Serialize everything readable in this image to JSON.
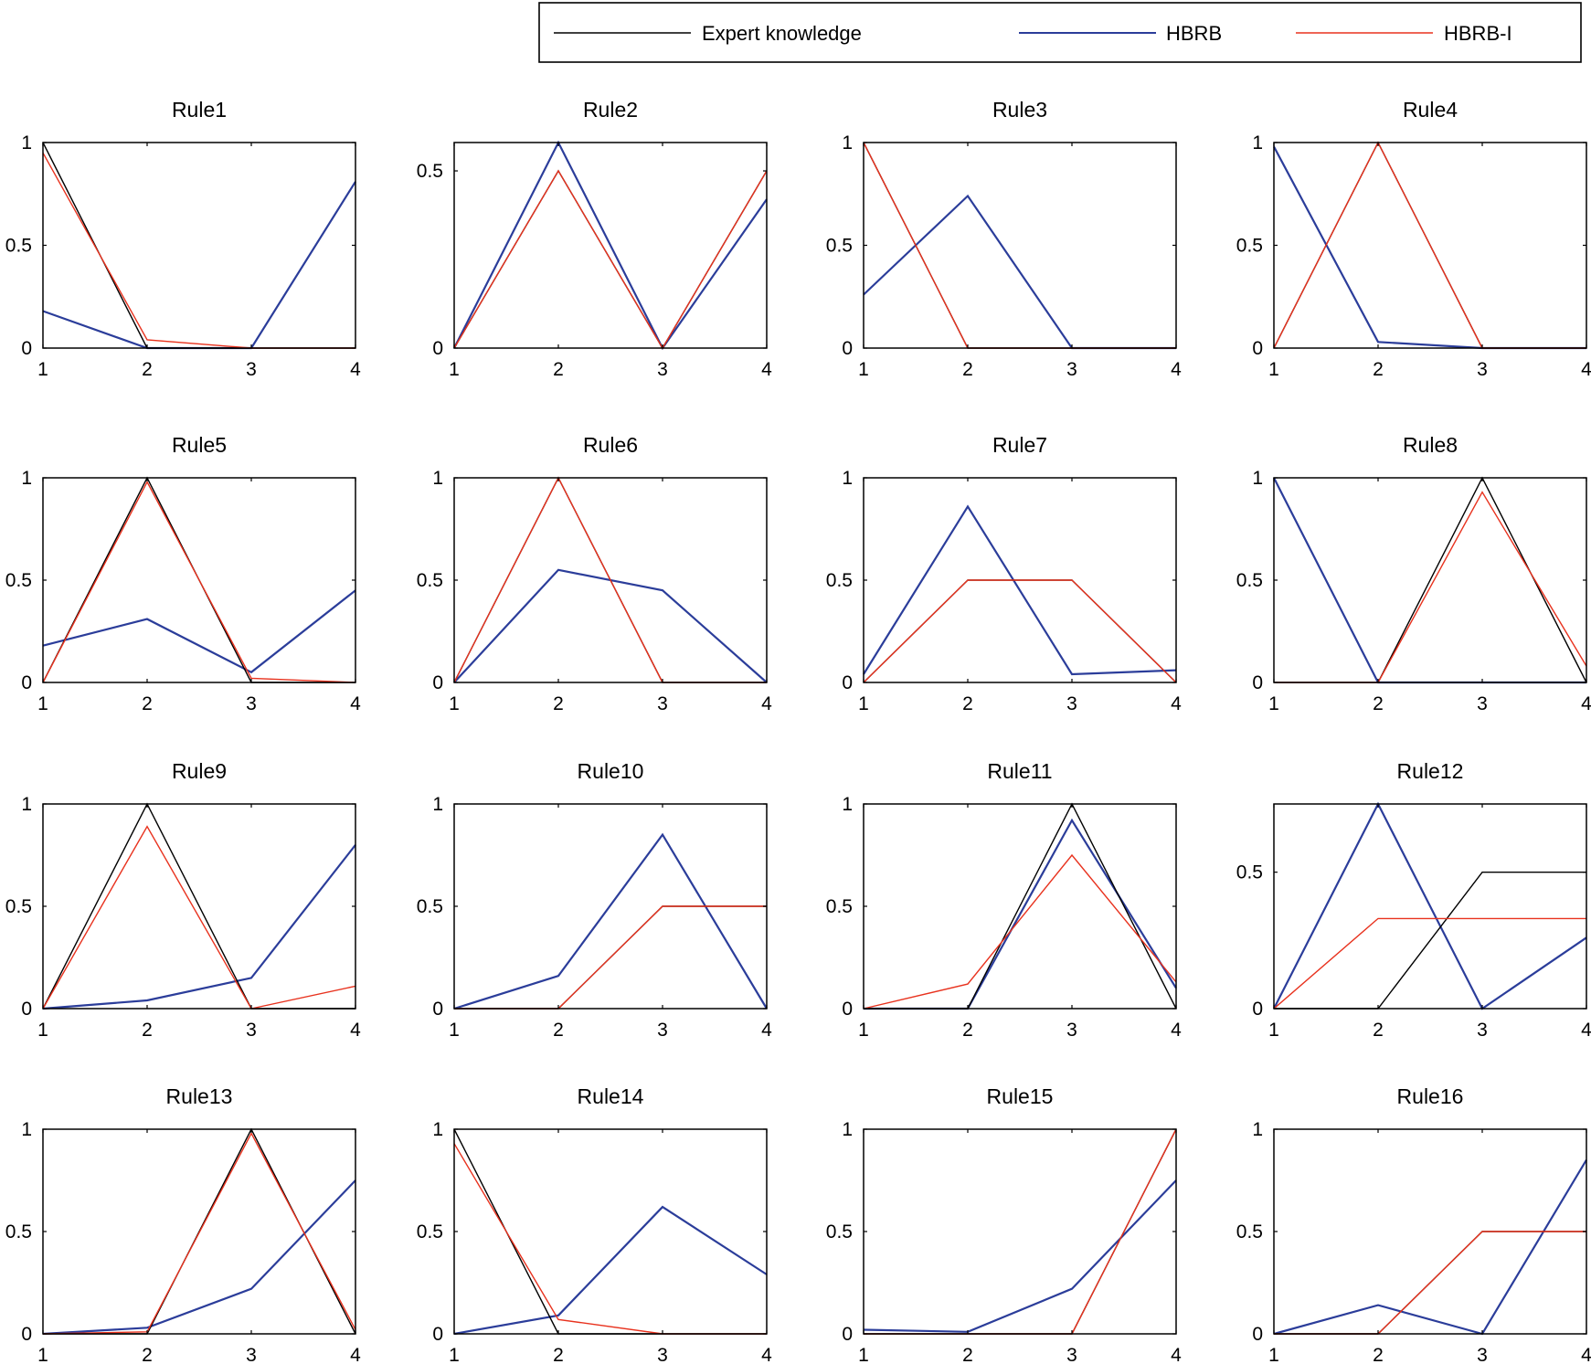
{
  "legend": {
    "entries": [
      {
        "label": "Expert knowledge",
        "color": "#000000"
      },
      {
        "label": "HBRB",
        "color": "#2b3d9a"
      },
      {
        "label": "HBRB-I",
        "color": "#e8321e"
      }
    ]
  },
  "chart_data": [
    {
      "type": "line",
      "title": "Rule1",
      "x": [
        1,
        2,
        3,
        4
      ],
      "xticks": [
        "1",
        "2",
        "3",
        "4"
      ],
      "ylim": [
        0,
        1
      ],
      "yticks": [
        0,
        0.5,
        1
      ],
      "yticklabels": [
        "0",
        "0.5",
        "1"
      ],
      "series": [
        {
          "name": "Expert knowledge",
          "values": [
            1,
            0,
            0,
            0
          ]
        },
        {
          "name": "HBRB",
          "values": [
            0.18,
            0,
            0,
            0.81
          ]
        },
        {
          "name": "HBRB-I",
          "values": [
            0.95,
            0.04,
            0,
            0
          ]
        }
      ]
    },
    {
      "type": "line",
      "title": "Rule2",
      "x": [
        1,
        2,
        3,
        4
      ],
      "xticks": [
        "1",
        "2",
        "3",
        "4"
      ],
      "ylim": [
        0,
        0.58
      ],
      "yticks": [
        0,
        0.5
      ],
      "yticklabels": [
        "0",
        "0.5"
      ],
      "series": [
        {
          "name": "Expert knowledge",
          "values": [
            0,
            0.5,
            0,
            0.5
          ]
        },
        {
          "name": "HBRB",
          "values": [
            0,
            0.58,
            0,
            0.42
          ]
        },
        {
          "name": "HBRB-I",
          "values": [
            0,
            0.5,
            0,
            0.5
          ]
        }
      ]
    },
    {
      "type": "line",
      "title": "Rule3",
      "x": [
        1,
        2,
        3,
        4
      ],
      "xticks": [
        "1",
        "2",
        "3",
        "4"
      ],
      "ylim": [
        0,
        1
      ],
      "yticks": [
        0,
        0.5,
        1
      ],
      "yticklabels": [
        "0",
        "0.5",
        "1"
      ],
      "series": [
        {
          "name": "Expert knowledge",
          "values": [
            1,
            0,
            0,
            0
          ]
        },
        {
          "name": "HBRB",
          "values": [
            0.26,
            0.74,
            0,
            0
          ]
        },
        {
          "name": "HBRB-I",
          "values": [
            1,
            0,
            0,
            0
          ]
        }
      ]
    },
    {
      "type": "line",
      "title": "Rule4",
      "x": [
        1,
        2,
        3,
        4
      ],
      "xticks": [
        "1",
        "2",
        "3",
        "4"
      ],
      "ylim": [
        0,
        1
      ],
      "yticks": [
        0,
        0.5,
        1
      ],
      "yticklabels": [
        "0",
        "0.5",
        "1"
      ],
      "series": [
        {
          "name": "Expert knowledge",
          "values": [
            0,
            1,
            0,
            0
          ]
        },
        {
          "name": "HBRB",
          "values": [
            0.98,
            0.03,
            0,
            0
          ]
        },
        {
          "name": "HBRB-I",
          "values": [
            0,
            1,
            0,
            0
          ]
        }
      ]
    },
    {
      "type": "line",
      "title": "Rule5",
      "x": [
        1,
        2,
        3,
        4
      ],
      "xticks": [
        "1",
        "2",
        "3",
        "4"
      ],
      "ylim": [
        0,
        1
      ],
      "yticks": [
        0,
        0.5,
        1
      ],
      "yticklabels": [
        "0",
        "0.5",
        "1"
      ],
      "series": [
        {
          "name": "Expert knowledge",
          "values": [
            0,
            1,
            0,
            0
          ]
        },
        {
          "name": "HBRB",
          "values": [
            0.18,
            0.31,
            0.05,
            0.45
          ]
        },
        {
          "name": "HBRB-I",
          "values": [
            0,
            0.98,
            0.02,
            0
          ]
        }
      ]
    },
    {
      "type": "line",
      "title": "Rule6",
      "x": [
        1,
        2,
        3,
        4
      ],
      "xticks": [
        "1",
        "2",
        "3",
        "4"
      ],
      "ylim": [
        0,
        1
      ],
      "yticks": [
        0,
        0.5,
        1
      ],
      "yticklabels": [
        "0",
        "0.5",
        "1"
      ],
      "series": [
        {
          "name": "Expert knowledge",
          "values": [
            0,
            1,
            0,
            0
          ]
        },
        {
          "name": "HBRB",
          "values": [
            0,
            0.55,
            0.45,
            0
          ]
        },
        {
          "name": "HBRB-I",
          "values": [
            0,
            1,
            0,
            0
          ]
        }
      ]
    },
    {
      "type": "line",
      "title": "Rule7",
      "x": [
        1,
        2,
        3,
        4
      ],
      "xticks": [
        "1",
        "2",
        "3",
        "4"
      ],
      "ylim": [
        0,
        1
      ],
      "yticks": [
        0,
        0.5,
        1
      ],
      "yticklabels": [
        "0",
        "0.5",
        "1"
      ],
      "series": [
        {
          "name": "Expert knowledge",
          "values": [
            0,
            0.5,
            0.5,
            0
          ]
        },
        {
          "name": "HBRB",
          "values": [
            0.04,
            0.86,
            0.04,
            0.06
          ]
        },
        {
          "name": "HBRB-I",
          "values": [
            0,
            0.5,
            0.5,
            0
          ]
        }
      ]
    },
    {
      "type": "line",
      "title": "Rule8",
      "x": [
        1,
        2,
        3,
        4
      ],
      "xticks": [
        "1",
        "2",
        "3",
        "4"
      ],
      "ylim": [
        0,
        1
      ],
      "yticks": [
        0,
        0.5,
        1
      ],
      "yticklabels": [
        "0",
        "0.5",
        "1"
      ],
      "series": [
        {
          "name": "Expert knowledge",
          "values": [
            0,
            0,
            1,
            0
          ]
        },
        {
          "name": "HBRB",
          "values": [
            1,
            0,
            0,
            0
          ]
        },
        {
          "name": "HBRB-I",
          "values": [
            0,
            0,
            0.93,
            0.08
          ]
        }
      ]
    },
    {
      "type": "line",
      "title": "Rule9",
      "x": [
        1,
        2,
        3,
        4
      ],
      "xticks": [
        "1",
        "2",
        "3",
        "4"
      ],
      "ylim": [
        0,
        1
      ],
      "yticks": [
        0,
        0.5,
        1
      ],
      "yticklabels": [
        "0",
        "0.5",
        "1"
      ],
      "series": [
        {
          "name": "Expert knowledge",
          "values": [
            0,
            1,
            0,
            0
          ]
        },
        {
          "name": "HBRB",
          "values": [
            0,
            0.04,
            0.15,
            0.8
          ]
        },
        {
          "name": "HBRB-I",
          "values": [
            0,
            0.89,
            0,
            0.11
          ]
        }
      ]
    },
    {
      "type": "line",
      "title": "Rule10",
      "x": [
        1,
        2,
        3,
        4
      ],
      "xticks": [
        "1",
        "2",
        "3",
        "4"
      ],
      "ylim": [
        0,
        1
      ],
      "yticks": [
        0,
        0.5,
        1
      ],
      "yticklabels": [
        "0",
        "0.5",
        "1"
      ],
      "series": [
        {
          "name": "Expert knowledge",
          "values": [
            0,
            0,
            0.5,
            0.5
          ]
        },
        {
          "name": "HBRB",
          "values": [
            0,
            0.16,
            0.85,
            0
          ]
        },
        {
          "name": "HBRB-I",
          "values": [
            0,
            0,
            0.5,
            0.5
          ]
        }
      ]
    },
    {
      "type": "line",
      "title": "Rule11",
      "x": [
        1,
        2,
        3,
        4
      ],
      "xticks": [
        "1",
        "2",
        "3",
        "4"
      ],
      "ylim": [
        0,
        1
      ],
      "yticks": [
        0,
        0.5,
        1
      ],
      "yticklabels": [
        "0",
        "0.5",
        "1"
      ],
      "series": [
        {
          "name": "Expert knowledge",
          "values": [
            0,
            0,
            1,
            0
          ]
        },
        {
          "name": "HBRB",
          "values": [
            0,
            0,
            0.92,
            0.1
          ]
        },
        {
          "name": "HBRB-I",
          "values": [
            0,
            0.12,
            0.75,
            0.13
          ]
        }
      ]
    },
    {
      "type": "line",
      "title": "Rule12",
      "x": [
        1,
        2,
        3,
        4
      ],
      "xticks": [
        "1",
        "2",
        "3",
        "4"
      ],
      "ylim": [
        0,
        0.75
      ],
      "yticks": [
        0,
        0.5
      ],
      "yticklabels": [
        "0",
        "0.5"
      ],
      "series": [
        {
          "name": "Expert knowledge",
          "values": [
            0,
            0,
            0.5,
            0.5
          ]
        },
        {
          "name": "HBRB",
          "values": [
            0,
            0.75,
            0,
            0.26
          ]
        },
        {
          "name": "HBRB-I",
          "values": [
            0,
            0.33,
            0.33,
            0.33
          ]
        }
      ]
    },
    {
      "type": "line",
      "title": "Rule13",
      "x": [
        1,
        2,
        3,
        4
      ],
      "xticks": [
        "1",
        "2",
        "3",
        "4"
      ],
      "ylim": [
        0,
        1
      ],
      "yticks": [
        0,
        0.5,
        1
      ],
      "yticklabels": [
        "0",
        "0.5",
        "1"
      ],
      "series": [
        {
          "name": "Expert knowledge",
          "values": [
            0,
            0,
            1,
            0
          ]
        },
        {
          "name": "HBRB",
          "values": [
            0,
            0.03,
            0.22,
            0.75
          ]
        },
        {
          "name": "HBRB-I",
          "values": [
            0,
            0.01,
            0.98,
            0.02
          ]
        }
      ]
    },
    {
      "type": "line",
      "title": "Rule14",
      "x": [
        1,
        2,
        3,
        4
      ],
      "xticks": [
        "1",
        "2",
        "3",
        "4"
      ],
      "ylim": [
        0,
        1
      ],
      "yticks": [
        0,
        0.5,
        1
      ],
      "yticklabels": [
        "0",
        "0.5",
        "1"
      ],
      "series": [
        {
          "name": "Expert knowledge",
          "values": [
            1,
            0,
            0,
            0
          ]
        },
        {
          "name": "HBRB",
          "values": [
            0,
            0.09,
            0.62,
            0.29
          ]
        },
        {
          "name": "HBRB-I",
          "values": [
            0.93,
            0.07,
            0,
            0
          ]
        }
      ]
    },
    {
      "type": "line",
      "title": "Rule15",
      "x": [
        1,
        2,
        3,
        4
      ],
      "xticks": [
        "1",
        "2",
        "3",
        "4"
      ],
      "ylim": [
        0,
        1
      ],
      "yticks": [
        0,
        0.5,
        1
      ],
      "yticklabels": [
        "0",
        "0.5",
        "1"
      ],
      "series": [
        {
          "name": "Expert knowledge",
          "values": [
            0,
            0,
            0,
            1
          ]
        },
        {
          "name": "HBRB",
          "values": [
            0.02,
            0.01,
            0.22,
            0.75
          ]
        },
        {
          "name": "HBRB-I",
          "values": [
            0,
            0,
            0,
            1
          ]
        }
      ]
    },
    {
      "type": "line",
      "title": "Rule16",
      "x": [
        1,
        2,
        3,
        4
      ],
      "xticks": [
        "1",
        "2",
        "3",
        "4"
      ],
      "ylim": [
        0,
        1
      ],
      "yticks": [
        0,
        0.5,
        1
      ],
      "yticklabels": [
        "0",
        "0.5",
        "1"
      ],
      "series": [
        {
          "name": "Expert knowledge",
          "values": [
            0,
            0,
            0.5,
            0.5
          ]
        },
        {
          "name": "HBRB",
          "values": [
            0,
            0.14,
            0,
            0.85
          ]
        },
        {
          "name": "HBRB-I",
          "values": [
            0,
            0,
            0.5,
            0.5
          ]
        }
      ]
    }
  ]
}
